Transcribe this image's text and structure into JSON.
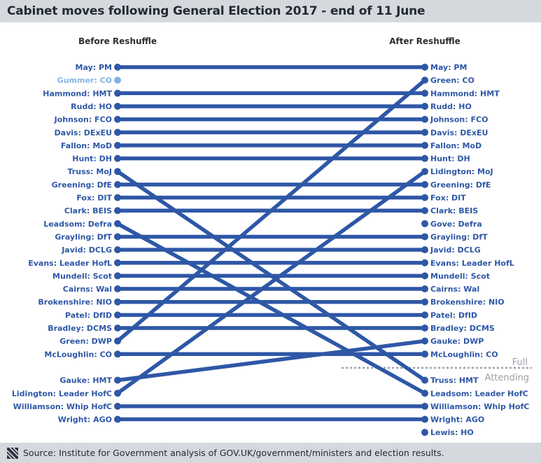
{
  "title": "Cabinet moves following General Election 2017 - end of 11 June",
  "columns": {
    "before": "Before Reshuffle",
    "after": "After Reshuffle"
  },
  "colors": {
    "line": "#2e57a6",
    "label": "#2e57a6",
    "faded": "#7fb4e6",
    "separator": "#9aa1a7",
    "bar": "#d5d9dd"
  },
  "separator": {
    "upper_label": "Full",
    "lower_label": "Attending"
  },
  "source": "Source: Institute for Government analysis of GOV.UK/government/ministers and election results.",
  "before": [
    {
      "label": "May: PM",
      "row": 0
    },
    {
      "label": "Gummer: CO",
      "row": 1,
      "faded": true
    },
    {
      "label": "Hammond: HMT",
      "row": 2
    },
    {
      "label": "Rudd: HO",
      "row": 3
    },
    {
      "label": "Johnson: FCO",
      "row": 4
    },
    {
      "label": "Davis: DExEU",
      "row": 5
    },
    {
      "label": "Fallon: MoD",
      "row": 6
    },
    {
      "label": "Hunt: DH",
      "row": 7
    },
    {
      "label": "Truss: MoJ",
      "row": 8
    },
    {
      "label": "Greening: DfE",
      "row": 9
    },
    {
      "label": "Fox: DIT",
      "row": 10
    },
    {
      "label": "Clark: BEIS",
      "row": 11
    },
    {
      "label": "Leadsom: Defra",
      "row": 12
    },
    {
      "label": "Grayling: DfT",
      "row": 13
    },
    {
      "label": "Javid: DCLG",
      "row": 14
    },
    {
      "label": "Evans: Leader HofL",
      "row": 15
    },
    {
      "label": "Mundell: Scot",
      "row": 16
    },
    {
      "label": "Cairns: Wal",
      "row": 17
    },
    {
      "label": "Brokenshire: NIO",
      "row": 18
    },
    {
      "label": "Patel: DfID",
      "row": 19
    },
    {
      "label": "Bradley: DCMS",
      "row": 20
    },
    {
      "label": "Green: DWP",
      "row": 21
    },
    {
      "label": "McLoughlin: CO",
      "row": 22
    },
    {
      "label": "Gauke: HMT",
      "row": 24
    },
    {
      "label": "Lidington: Leader HofC",
      "row": 25
    },
    {
      "label": "Williamson: Whip HofC",
      "row": 26
    },
    {
      "label": "Wright: AGO",
      "row": 27
    }
  ],
  "after": [
    {
      "label": "May: PM",
      "row": 0
    },
    {
      "label": "Green: CO",
      "row": 1
    },
    {
      "label": "Hammond: HMT",
      "row": 2
    },
    {
      "label": "Rudd: HO",
      "row": 3
    },
    {
      "label": "Johnson: FCO",
      "row": 4
    },
    {
      "label": "Davis: DExEU",
      "row": 5
    },
    {
      "label": "Fallon: MoD",
      "row": 6
    },
    {
      "label": "Hunt: DH",
      "row": 7
    },
    {
      "label": "Lidington: MoJ",
      "row": 8
    },
    {
      "label": "Greening: DfE",
      "row": 9
    },
    {
      "label": "Fox: DIT",
      "row": 10
    },
    {
      "label": "Clark: BEIS",
      "row": 11
    },
    {
      "label": "Gove: Defra",
      "row": 12
    },
    {
      "label": "Grayling: DfT",
      "row": 13
    },
    {
      "label": "Javid: DCLG",
      "row": 14
    },
    {
      "label": "Evans: Leader HofL",
      "row": 15
    },
    {
      "label": "Mundell: Scot",
      "row": 16
    },
    {
      "label": "Cairns: Wal",
      "row": 17
    },
    {
      "label": "Brokenshire: NIO",
      "row": 18
    },
    {
      "label": "Patel: DfID",
      "row": 19
    },
    {
      "label": "Bradley: DCMS",
      "row": 20
    },
    {
      "label": "Gauke: DWP",
      "row": 21
    },
    {
      "label": "McLoughlin: CO",
      "row": 22
    },
    {
      "label": "Truss: HMT",
      "row": 24
    },
    {
      "label": "Leadsom: Leader HofC",
      "row": 25
    },
    {
      "label": "Williamson: Whip HofC",
      "row": 26
    },
    {
      "label": "Wright: AGO",
      "row": 27
    },
    {
      "label": "Lewis: HO",
      "row": 28
    }
  ],
  "moves": [
    {
      "person": "May",
      "from": 0,
      "to": 0
    },
    {
      "person": "Hammond",
      "from": 2,
      "to": 2
    },
    {
      "person": "Rudd",
      "from": 3,
      "to": 3
    },
    {
      "person": "Johnson",
      "from": 4,
      "to": 4
    },
    {
      "person": "Davis",
      "from": 5,
      "to": 5
    },
    {
      "person": "Fallon",
      "from": 6,
      "to": 6
    },
    {
      "person": "Hunt",
      "from": 7,
      "to": 7
    },
    {
      "person": "Truss",
      "from": 8,
      "to": 24
    },
    {
      "person": "Greening",
      "from": 9,
      "to": 9
    },
    {
      "person": "Fox",
      "from": 10,
      "to": 10
    },
    {
      "person": "Clark",
      "from": 11,
      "to": 11
    },
    {
      "person": "Leadsom",
      "from": 12,
      "to": 25
    },
    {
      "person": "Grayling",
      "from": 13,
      "to": 13
    },
    {
      "person": "Javid",
      "from": 14,
      "to": 14
    },
    {
      "person": "Evans",
      "from": 15,
      "to": 15
    },
    {
      "person": "Mundell",
      "from": 16,
      "to": 16
    },
    {
      "person": "Cairns",
      "from": 17,
      "to": 17
    },
    {
      "person": "Brokenshire",
      "from": 18,
      "to": 18
    },
    {
      "person": "Patel",
      "from": 19,
      "to": 19
    },
    {
      "person": "Bradley",
      "from": 20,
      "to": 20
    },
    {
      "person": "Green",
      "from": 21,
      "to": 1
    },
    {
      "person": "McLoughlin",
      "from": 22,
      "to": 22
    },
    {
      "person": "Gauke",
      "from": 24,
      "to": 21
    },
    {
      "person": "Lidington",
      "from": 25,
      "to": 8
    },
    {
      "person": "Williamson",
      "from": 26,
      "to": 26
    },
    {
      "person": "Wright",
      "from": 27,
      "to": 27
    }
  ]
}
